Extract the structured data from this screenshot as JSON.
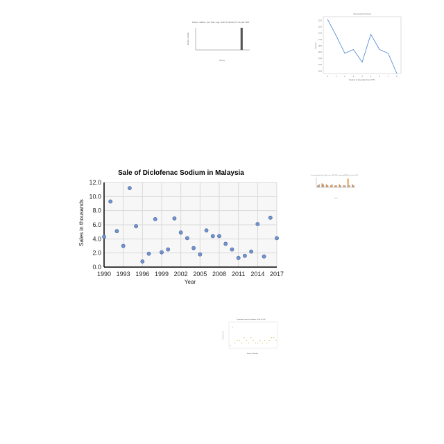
{
  "chart_data": [
    {
      "type": "bar",
      "title": "Deaths - Malaria - Sex: Both - Age: Under 5 (Number) for the year 1996",
      "xlabel": "Country",
      "ylabel": "Number of deaths",
      "values": [
        0,
        0,
        0,
        0,
        0,
        0,
        0,
        0,
        1,
        0
      ],
      "ylim": [
        0,
        1
      ]
    },
    {
      "type": "line",
      "title": "Some kind of trend",
      "xlabel": "Number of days after time of TTL",
      "ylabel": "Amount",
      "x": [
        0,
        1,
        2,
        3,
        4,
        5,
        6,
        7,
        8
      ],
      "y": [
        22.6,
        21.3,
        19.9,
        20.2,
        19.2,
        21.4,
        20.2,
        19.9,
        18.3
      ],
      "xticks": [
        "0",
        "1",
        "2",
        "3",
        "4",
        "5",
        "6",
        "7",
        "8"
      ],
      "yticks": [
        "18.5",
        "19.0",
        "19.5",
        "20.0",
        "20.5",
        "21.0",
        "21.5",
        "22.0",
        "22.5"
      ],
      "ylim": [
        18.3,
        22.8
      ]
    },
    {
      "type": "scatter",
      "title": "Sale of Diclofenac Sodium in Malaysia",
      "xlabel": "Year",
      "ylabel": "Sales in thousands",
      "x": [
        1990,
        1991,
        1992,
        1993,
        1994,
        1995,
        1996,
        1997,
        1998,
        1999,
        2000,
        2001,
        2002,
        2003,
        2004,
        2005,
        2006,
        2007,
        2008,
        2009,
        2010,
        2011,
        2012,
        2013,
        2014,
        2015,
        2016,
        2017
      ],
      "y": [
        4.3,
        9.3,
        5.1,
        3.0,
        11.2,
        5.8,
        0.8,
        1.9,
        6.8,
        2.1,
        2.5,
        6.9,
        4.9,
        4.1,
        2.7,
        1.8,
        5.2,
        4.4,
        4.4,
        3.3,
        2.5,
        1.3,
        1.6,
        2.2,
        6.1,
        1.5,
        7.0,
        4.1
      ],
      "xticks": [
        "1990",
        "1993",
        "1996",
        "1999",
        "2002",
        "2005",
        "2008",
        "2011",
        "2014",
        "2017"
      ],
      "yticks": [
        "0.0",
        "2.0",
        "4.0",
        "6.0",
        "8.0",
        "10.0",
        "12.0"
      ],
      "xlim": [
        1990,
        2017
      ],
      "ylim": [
        0,
        12
      ],
      "grid": true,
      "colors": {
        "point": "#7293cb",
        "point_stroke": "#44609c"
      }
    },
    {
      "type": "bar",
      "title": "Crude expenditure (per Kg) by crops, 1990-2006 in imported ADM3% in the year 2014",
      "xlabel": "Crops",
      "ylabel": "",
      "series": [
        {
          "values": [
            2,
            4,
            3,
            2,
            2,
            3,
            2,
            9,
            3
          ]
        },
        {
          "values": [
            3,
            3,
            2,
            3,
            2,
            2,
            2,
            2,
            2
          ]
        }
      ],
      "ylim": [
        0,
        10
      ],
      "colors": {
        "s1": "#e08a3c",
        "s2": "#9aa0a6"
      }
    },
    {
      "type": "scatter",
      "title": "Population count in Reindeer (1000 of 10K)",
      "xlabel": "Number of Reindeer",
      "ylabel": "Reindeer Count",
      "x": [
        0,
        1,
        2,
        3,
        4,
        5,
        6,
        7,
        8,
        9,
        10,
        11,
        12,
        13,
        14,
        15,
        16,
        17,
        18,
        19,
        20
      ],
      "y": [
        1,
        8,
        2,
        3,
        3,
        2,
        4,
        3,
        2,
        4,
        3,
        2,
        2,
        3,
        2,
        3,
        2,
        3,
        4,
        4,
        3
      ],
      "ylim": [
        0,
        10
      ],
      "grid": true,
      "colors": {
        "points": "#d6c36a"
      }
    }
  ]
}
